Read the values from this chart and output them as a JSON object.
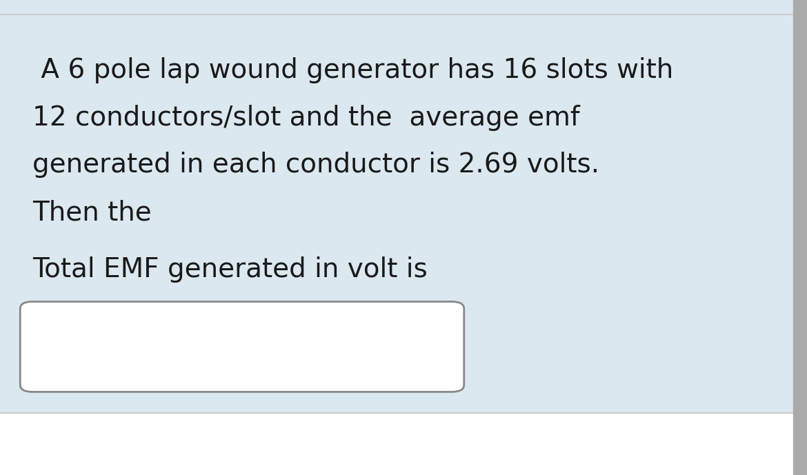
{
  "line1": " A 6 pole lap wound generator has 16 slots with",
  "line2": "12 conductors/slot and the  average emf",
  "line3": "generated in each conductor is 2.69 volts.",
  "line4": "Then the",
  "line5": "Total EMF generated in volt is",
  "bg_color_top": "#dce8f0",
  "bg_color_bottom": "#ffffff",
  "text_color": "#1a1a1a",
  "box_edge": "#888888",
  "font_size": 28,
  "fig_width": 11.7,
  "fig_height": 6.89,
  "right_border_color": "#aaaaaa",
  "separator_color": "#cccccc"
}
